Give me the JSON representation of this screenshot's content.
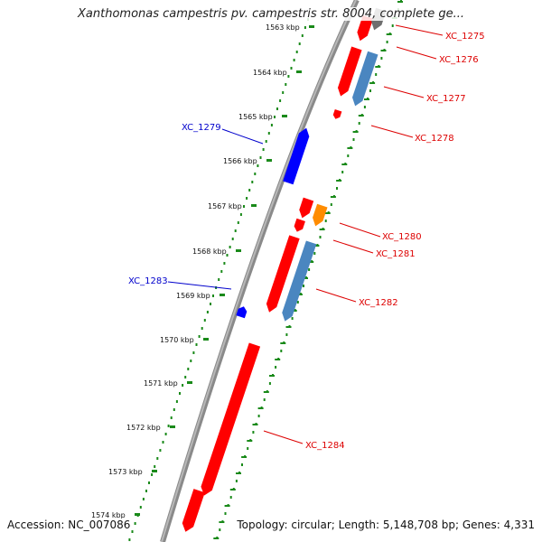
{
  "title": "Xanthomonas campestris pv. campestris str. 8004, complete ge...",
  "footer": {
    "accession": "Accession: NC_007086",
    "summary": "Topology: circular; Length: 5,148,708 bp; Genes: 4,331"
  },
  "colors": {
    "backbone": "#8a8a8a",
    "tick_green": "#1a8a1a",
    "forward_red": "#ff0000",
    "reverse_blue": "#0000ff",
    "steelblue": "#4a86c0",
    "orange": "#ff8c00",
    "grey": "#6e6e6e",
    "label_red": "#dd0000",
    "label_blue": "#0000cc"
  },
  "kbp_ticks": [
    "1563 kbp",
    "1564 kbp",
    "1565 kbp",
    "1566 kbp",
    "1567 kbp",
    "1568 kbp",
    "1569 kbp",
    "1570 kbp",
    "1571 kbp",
    "1572 kbp",
    "1573 kbp",
    "1574 kbp"
  ],
  "genes": [
    {
      "label": "XC_1275",
      "color": "red",
      "strand": "forward"
    },
    {
      "label": "XC_1276",
      "color": "red",
      "strand": "forward"
    },
    {
      "label": "XC_1277",
      "color": "red",
      "strand": "forward"
    },
    {
      "label": "XC_1278",
      "color": "red",
      "strand": "forward"
    },
    {
      "label": "XC_1279",
      "color": "blue",
      "strand": "reverse"
    },
    {
      "label": "XC_1280",
      "color": "red",
      "strand": "forward"
    },
    {
      "label": "XC_1281",
      "color": "red",
      "strand": "forward"
    },
    {
      "label": "XC_1282",
      "color": "red",
      "strand": "forward"
    },
    {
      "label": "XC_1283",
      "color": "blue",
      "strand": "reverse"
    },
    {
      "label": "XC_1284",
      "color": "red",
      "strand": "forward"
    }
  ]
}
